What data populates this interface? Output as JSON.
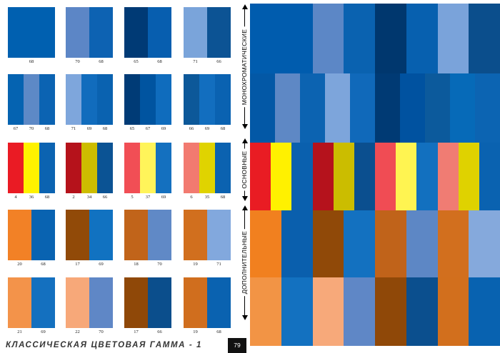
{
  "swatch_rows": [
    [
      {
        "colors": [
          "#0060B0"
        ],
        "numbers": [
          "68"
        ]
      },
      {
        "colors": [
          "#5C86C6",
          "#0D62B2"
        ],
        "numbers": [
          "70",
          "68"
        ]
      },
      {
        "colors": [
          "#003A75",
          "#075EAF"
        ],
        "numbers": [
          "65",
          "68"
        ]
      },
      {
        "colors": [
          "#7AA4DA",
          "#0C5394"
        ],
        "numbers": [
          "71",
          "66"
        ]
      }
    ],
    [
      {
        "colors": [
          "#0563B1",
          "#5D89C6",
          "#0B63B2"
        ],
        "numbers": [
          "67",
          "70",
          "68"
        ]
      },
      {
        "colors": [
          "#7EA6DC",
          "#116CBD",
          "#0A62B0"
        ],
        "numbers": [
          "71",
          "69",
          "68"
        ]
      },
      {
        "colors": [
          "#003B76",
          "#0054A0",
          "#0F6CBD"
        ],
        "numbers": [
          "65",
          "67",
          "69"
        ]
      },
      {
        "colors": [
          "#0C5899",
          "#126EBF",
          "#0A62B1"
        ],
        "numbers": [
          "66",
          "69",
          "68"
        ]
      }
    ],
    [
      {
        "colors": [
          "#EA1B24",
          "#FFF200",
          "#0B63B1"
        ],
        "numbers": [
          "4",
          "36",
          "68"
        ]
      },
      {
        "colors": [
          "#B5121B",
          "#CDBD00",
          "#0B5394"
        ],
        "numbers": [
          "2",
          "34",
          "66"
        ]
      },
      {
        "colors": [
          "#F14E55",
          "#FFF45A",
          "#1470BF"
        ],
        "numbers": [
          "5",
          "37",
          "69"
        ]
      },
      {
        "colors": [
          "#F27A70",
          "#E0D300",
          "#0B62B0"
        ],
        "numbers": [
          "6",
          "35",
          "68"
        ]
      }
    ],
    [
      {
        "colors": [
          "#F28126",
          "#0963B1"
        ],
        "numbers": [
          "20",
          "68"
        ]
      },
      {
        "colors": [
          "#914A08",
          "#1172C1"
        ],
        "numbers": [
          "17",
          "69"
        ]
      },
      {
        "colors": [
          "#C1641A",
          "#6089C6"
        ],
        "numbers": [
          "18",
          "70"
        ]
      },
      {
        "colors": [
          "#D16F1E",
          "#82A8DD"
        ],
        "numbers": [
          "19",
          "71"
        ]
      }
    ],
    [
      {
        "colors": [
          "#F3934A",
          "#1470BF"
        ],
        "numbers": [
          "21",
          "69"
        ]
      },
      {
        "colors": [
          "#F7A879",
          "#5F87C6"
        ],
        "numbers": [
          "22",
          "70"
        ]
      },
      {
        "colors": [
          "#8F4808",
          "#0B4E8C"
        ],
        "numbers": [
          "17",
          "66"
        ]
      },
      {
        "colors": [
          "#D06E1E",
          "#0A62B0"
        ],
        "numbers": [
          "19",
          "68"
        ]
      }
    ]
  ],
  "sections": {
    "monochromatic": "МОНОХРОМАТИЧЕСКИЕ",
    "basic": "ОСНОВНЫЕ",
    "complementary": "ДОПОЛНИТЕЛЬНЫЕ"
  },
  "grid_rows": [
    [
      "#005CAE",
      "#005CAE",
      "#5C87C6",
      "#0A62B0",
      "#00376E",
      "#0760AF",
      "#7AA3DA",
      "#0B4E8C"
    ],
    [
      "#0358A6",
      "#5E88C5",
      "#0C63B1",
      "#7DA5DB",
      "#1069BA",
      "#003A74",
      "#0052A0",
      "#0C5A9C",
      "#066AB8",
      "#0C64B2"
    ],
    [
      "#E91C23",
      "#FFF100",
      "#0A60AE",
      "#B5121C",
      "#CBBD00",
      "#0B4F8F",
      "#F04C54",
      "#FFF451",
      "#1270BF",
      "#F07C73",
      "#DFD200",
      "#0A62B0"
    ],
    [
      "#F1801F",
      "#0A5FAD",
      "#904908",
      "#1371C0",
      "#C0631A",
      "#5D87C5",
      "#D26F1E",
      "#85A9DC"
    ],
    [
      "#F29445",
      "#1371C0",
      "#F7A97A",
      "#5F87C6",
      "#8F4808",
      "#0B4F8E",
      "#D26F1D",
      "#0862B0"
    ]
  ],
  "footer": {
    "title": "КЛАССИЧЕСКАЯ ЦВЕТОВАЯ ГАММА - 1",
    "page_number": "79"
  }
}
